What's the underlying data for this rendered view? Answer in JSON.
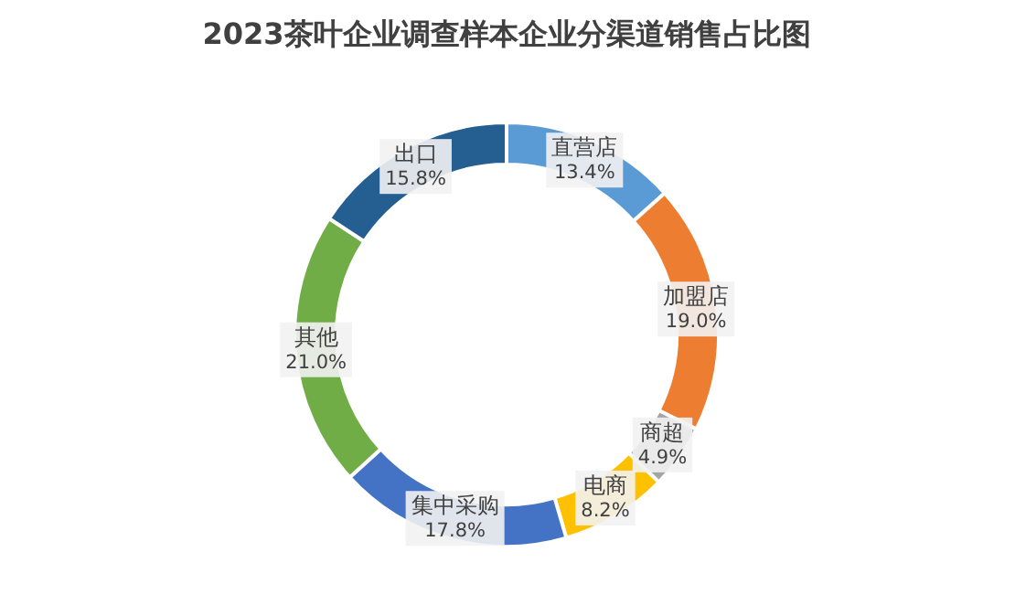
{
  "chart_data": {
    "type": "donut",
    "title": "2023茶叶企业调查样本企业分渠道销售占比图",
    "categories": [
      "直营店",
      "加盟店",
      "商超",
      "电商",
      "集中采购",
      "其他",
      "出口"
    ],
    "values": [
      13.4,
      19.0,
      4.9,
      8.2,
      17.8,
      21.0,
      15.8
    ],
    "value_labels": [
      "13.4%",
      "19.0%",
      "4.9%",
      "8.2%",
      "17.8%",
      "21.0%",
      "15.8%"
    ],
    "colors": [
      "#5b9bd5",
      "#ed7d31",
      "#a5a5a5",
      "#ffc000",
      "#4472c4",
      "#70ad47",
      "#255e91"
    ]
  }
}
